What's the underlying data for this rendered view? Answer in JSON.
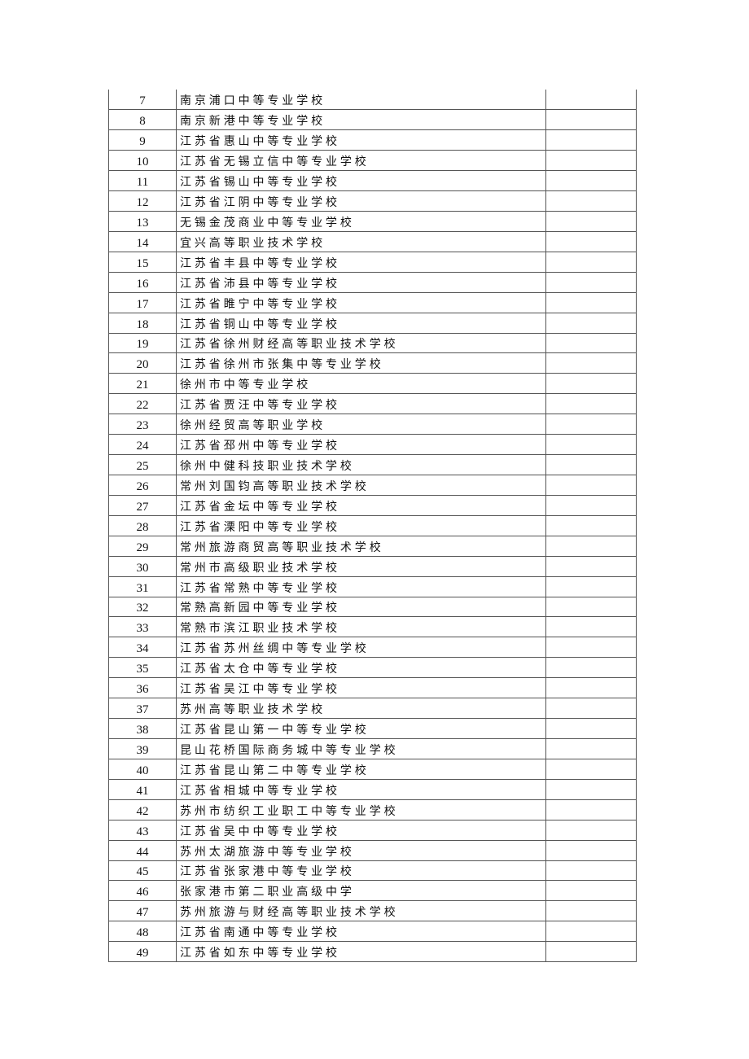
{
  "table": {
    "rows": [
      {
        "no": "7",
        "name": "南京浦口中等专业学校",
        "remark": ""
      },
      {
        "no": "8",
        "name": "南京新港中等专业学校",
        "remark": ""
      },
      {
        "no": "9",
        "name": "江苏省惠山中等专业学校",
        "remark": ""
      },
      {
        "no": "10",
        "name": "江苏省无锡立信中等专业学校",
        "remark": ""
      },
      {
        "no": "11",
        "name": "江苏省锡山中等专业学校",
        "remark": ""
      },
      {
        "no": "12",
        "name": "江苏省江阴中等专业学校",
        "remark": ""
      },
      {
        "no": "13",
        "name": "无锡金茂商业中等专业学校",
        "remark": ""
      },
      {
        "no": "14",
        "name": "宜兴高等职业技术学校",
        "remark": ""
      },
      {
        "no": "15",
        "name": "江苏省丰县中等专业学校",
        "remark": ""
      },
      {
        "no": "16",
        "name": "江苏省沛县中等专业学校",
        "remark": ""
      },
      {
        "no": "17",
        "name": "江苏省睢宁中等专业学校",
        "remark": ""
      },
      {
        "no": "18",
        "name": "江苏省铜山中等专业学校",
        "remark": ""
      },
      {
        "no": "19",
        "name": "江苏省徐州财经高等职业技术学校",
        "remark": ""
      },
      {
        "no": "20",
        "name": "江苏省徐州市张集中等专业学校",
        "remark": ""
      },
      {
        "no": "21",
        "name": "徐州市中等专业学校",
        "remark": ""
      },
      {
        "no": "22",
        "name": "江苏省贾汪中等专业学校",
        "remark": ""
      },
      {
        "no": "23",
        "name": "徐州经贸高等职业学校",
        "remark": ""
      },
      {
        "no": "24",
        "name": "江苏省邳州中等专业学校",
        "remark": ""
      },
      {
        "no": "25",
        "name": "徐州中健科技职业技术学校",
        "remark": ""
      },
      {
        "no": "26",
        "name": "常州刘国钧高等职业技术学校",
        "remark": ""
      },
      {
        "no": "27",
        "name": "江苏省金坛中等专业学校",
        "remark": ""
      },
      {
        "no": "28",
        "name": "江苏省溧阳中等专业学校",
        "remark": ""
      },
      {
        "no": "29",
        "name": "常州旅游商贸高等职业技术学校",
        "remark": ""
      },
      {
        "no": "30",
        "name": "常州市高级职业技术学校",
        "remark": ""
      },
      {
        "no": "31",
        "name": "江苏省常熟中等专业学校",
        "remark": ""
      },
      {
        "no": "32",
        "name": "常熟高新园中等专业学校",
        "remark": ""
      },
      {
        "no": "33",
        "name": "常熟市滨江职业技术学校",
        "remark": ""
      },
      {
        "no": "34",
        "name": "江苏省苏州丝绸中等专业学校",
        "remark": ""
      },
      {
        "no": "35",
        "name": "江苏省太仓中等专业学校",
        "remark": ""
      },
      {
        "no": "36",
        "name": "江苏省吴江中等专业学校",
        "remark": ""
      },
      {
        "no": "37",
        "name": "苏州高等职业技术学校",
        "remark": ""
      },
      {
        "no": "38",
        "name": "江苏省昆山第一中等专业学校",
        "remark": ""
      },
      {
        "no": "39",
        "name": "昆山花桥国际商务城中等专业学校",
        "remark": ""
      },
      {
        "no": "40",
        "name": "江苏省昆山第二中等专业学校",
        "remark": ""
      },
      {
        "no": "41",
        "name": "江苏省相城中等专业学校",
        "remark": ""
      },
      {
        "no": "42",
        "name": "苏州市纺织工业职工中等专业学校",
        "remark": ""
      },
      {
        "no": "43",
        "name": "江苏省吴中中等专业学校",
        "remark": ""
      },
      {
        "no": "44",
        "name": "苏州太湖旅游中等专业学校",
        "remark": ""
      },
      {
        "no": "45",
        "name": "江苏省张家港中等专业学校",
        "remark": ""
      },
      {
        "no": "46",
        "name": "张家港市第二职业高级中学",
        "remark": ""
      },
      {
        "no": "47",
        "name": "苏州旅游与财经高等职业技术学校",
        "remark": ""
      },
      {
        "no": "48",
        "name": "江苏省南通中等专业学校",
        "remark": ""
      },
      {
        "no": "49",
        "name": "江苏省如东中等专业学校",
        "remark": ""
      }
    ]
  }
}
